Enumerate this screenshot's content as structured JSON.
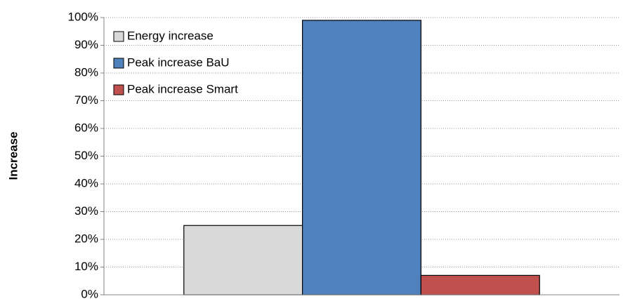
{
  "chart_data": {
    "type": "bar",
    "y_axis_label": "Increase",
    "categories": [
      null
    ],
    "series": [
      {
        "name": "Energy increase",
        "color": "#d9d9d9",
        "values": [
          25
        ]
      },
      {
        "name": "Peak increase BaU",
        "color": "#4f81bd",
        "values": [
          99
        ]
      },
      {
        "name": "Peak increase Smart",
        "color": "#c0504d",
        "values": [
          7
        ]
      }
    ],
    "ylim": [
      0,
      100
    ],
    "yticks": [
      {
        "value": 0,
        "label": "0%"
      },
      {
        "value": 10,
        "label": "10%"
      },
      {
        "value": 20,
        "label": "20%"
      },
      {
        "value": 30,
        "label": "30%"
      },
      {
        "value": 40,
        "label": "40%"
      },
      {
        "value": 50,
        "label": "50%"
      },
      {
        "value": 60,
        "label": "60%"
      },
      {
        "value": 70,
        "label": "70%"
      },
      {
        "value": 80,
        "label": "80%"
      },
      {
        "value": 90,
        "label": "90%"
      },
      {
        "value": 100,
        "label": "100%"
      }
    ],
    "grid": true,
    "legend": "upper left"
  }
}
